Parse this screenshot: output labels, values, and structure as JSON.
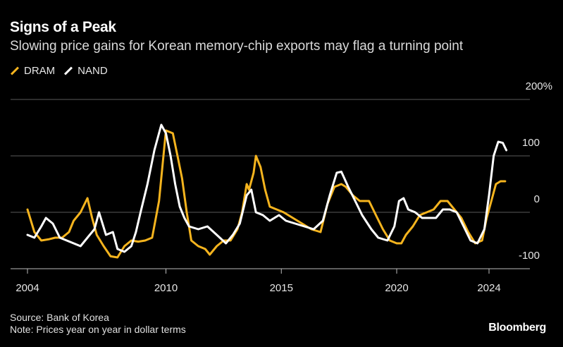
{
  "header": {
    "title": "Signs of a Peak",
    "subtitle": "Slowing price gains for Korean memory-chip exports may flag a turning point"
  },
  "legend": [
    {
      "label": "DRAM",
      "color": "#f5b41e"
    },
    {
      "label": "NAND",
      "color": "#ffffff"
    }
  ],
  "footer": {
    "source": "Source: Bank of Korea",
    "note": "Note: Prices year on year in dollar terms",
    "brand": "Bloomberg"
  },
  "chart_data": {
    "type": "line",
    "title": "Signs of a Peak",
    "subtitle": "Slowing price gains for Korean memory-chip exports may flag a turning point",
    "xlabel": "",
    "ylabel": "",
    "xlim": [
      2003.8,
      2025.2
    ],
    "ylim": [
      -100,
      200
    ],
    "y_unit": "%",
    "y_ticks": [
      {
        "value": 200,
        "label": "200%"
      },
      {
        "value": 100,
        "label": "100"
      },
      {
        "value": 0,
        "label": "0"
      },
      {
        "value": -100,
        "label": "-100"
      }
    ],
    "x_ticks": [
      {
        "value": 2004,
        "label": "2004"
      },
      {
        "value": 2010,
        "label": "2010"
      },
      {
        "value": 2015,
        "label": "2015"
      },
      {
        "value": 2020,
        "label": "2020"
      },
      {
        "value": 2024,
        "label": "2024"
      }
    ],
    "grid": "horizontal",
    "legend_position": "top-left",
    "series": [
      {
        "name": "DRAM",
        "color": "#f5b41e",
        "points": [
          [
            2004.0,
            5
          ],
          [
            2004.3,
            -35
          ],
          [
            2004.6,
            -50
          ],
          [
            2004.9,
            -48
          ],
          [
            2005.2,
            -45
          ],
          [
            2005.5,
            -45
          ],
          [
            2005.8,
            -35
          ],
          [
            2006.0,
            -15
          ],
          [
            2006.3,
            0
          ],
          [
            2006.6,
            25
          ],
          [
            2006.8,
            -10
          ],
          [
            2007.0,
            -40
          ],
          [
            2007.3,
            -60
          ],
          [
            2007.6,
            -78
          ],
          [
            2007.9,
            -80
          ],
          [
            2008.2,
            -60
          ],
          [
            2008.5,
            -50
          ],
          [
            2008.8,
            -52
          ],
          [
            2009.1,
            -50
          ],
          [
            2009.4,
            -45
          ],
          [
            2009.7,
            20
          ],
          [
            2010.0,
            145
          ],
          [
            2010.3,
            140
          ],
          [
            2010.5,
            100
          ],
          [
            2010.7,
            60
          ],
          [
            2010.9,
            0
          ],
          [
            2011.1,
            -50
          ],
          [
            2011.4,
            -60
          ],
          [
            2011.7,
            -65
          ],
          [
            2011.9,
            -75
          ],
          [
            2012.2,
            -60
          ],
          [
            2012.5,
            -50
          ],
          [
            2012.8,
            -50
          ],
          [
            2013.1,
            -30
          ],
          [
            2013.3,
            0
          ],
          [
            2013.5,
            50
          ],
          [
            2013.6,
            40
          ],
          [
            2013.8,
            70
          ],
          [
            2013.9,
            100
          ],
          [
            2014.1,
            80
          ],
          [
            2014.3,
            40
          ],
          [
            2014.5,
            10
          ],
          [
            2014.8,
            5
          ],
          [
            2015.1,
            0
          ],
          [
            2015.5,
            -10
          ],
          [
            2015.9,
            -20
          ],
          [
            2016.3,
            -30
          ],
          [
            2016.7,
            -35
          ],
          [
            2017.0,
            15
          ],
          [
            2017.3,
            45
          ],
          [
            2017.6,
            50
          ],
          [
            2017.8,
            45
          ],
          [
            2018.1,
            30
          ],
          [
            2018.4,
            20
          ],
          [
            2018.8,
            20
          ],
          [
            2019.1,
            -5
          ],
          [
            2019.4,
            -30
          ],
          [
            2019.7,
            -50
          ],
          [
            2020.0,
            -55
          ],
          [
            2020.2,
            -55
          ],
          [
            2020.4,
            -40
          ],
          [
            2020.7,
            -25
          ],
          [
            2021.0,
            -5
          ],
          [
            2021.3,
            0
          ],
          [
            2021.6,
            5
          ],
          [
            2021.9,
            20
          ],
          [
            2022.2,
            20
          ],
          [
            2022.5,
            5
          ],
          [
            2022.8,
            -10
          ],
          [
            2023.1,
            -35
          ],
          [
            2023.4,
            -55
          ],
          [
            2023.7,
            -50
          ],
          [
            2023.9,
            -10
          ],
          [
            2024.1,
            20
          ],
          [
            2024.3,
            50
          ],
          [
            2024.5,
            55
          ],
          [
            2024.7,
            55
          ]
        ]
      },
      {
        "name": "NAND",
        "color": "#ffffff",
        "points": [
          [
            2004.0,
            -40
          ],
          [
            2004.3,
            -45
          ],
          [
            2004.6,
            -25
          ],
          [
            2004.8,
            -10
          ],
          [
            2005.1,
            -20
          ],
          [
            2005.4,
            -45
          ],
          [
            2005.7,
            -50
          ],
          [
            2006.0,
            -55
          ],
          [
            2006.3,
            -60
          ],
          [
            2006.6,
            -45
          ],
          [
            2006.9,
            -30
          ],
          [
            2007.1,
            0
          ],
          [
            2007.4,
            -40
          ],
          [
            2007.7,
            -35
          ],
          [
            2007.9,
            -65
          ],
          [
            2008.2,
            -70
          ],
          [
            2008.5,
            -60
          ],
          [
            2008.7,
            -35
          ],
          [
            2008.9,
            0
          ],
          [
            2009.2,
            50
          ],
          [
            2009.5,
            110
          ],
          [
            2009.8,
            155
          ],
          [
            2010.0,
            140
          ],
          [
            2010.2,
            100
          ],
          [
            2010.4,
            50
          ],
          [
            2010.6,
            10
          ],
          [
            2010.8,
            -10
          ],
          [
            2011.0,
            -25
          ],
          [
            2011.4,
            -30
          ],
          [
            2011.8,
            -25
          ],
          [
            2012.2,
            -40
          ],
          [
            2012.6,
            -55
          ],
          [
            2012.9,
            -40
          ],
          [
            2013.2,
            -20
          ],
          [
            2013.5,
            30
          ],
          [
            2013.7,
            40
          ],
          [
            2013.9,
            0
          ],
          [
            2014.2,
            -5
          ],
          [
            2014.5,
            -15
          ],
          [
            2014.9,
            -5
          ],
          [
            2015.2,
            -15
          ],
          [
            2015.6,
            -20
          ],
          [
            2016.0,
            -25
          ],
          [
            2016.4,
            -30
          ],
          [
            2016.8,
            -15
          ],
          [
            2017.1,
            30
          ],
          [
            2017.4,
            70
          ],
          [
            2017.6,
            72
          ],
          [
            2017.9,
            45
          ],
          [
            2018.2,
            20
          ],
          [
            2018.5,
            -5
          ],
          [
            2018.9,
            -30
          ],
          [
            2019.2,
            -45
          ],
          [
            2019.6,
            -50
          ],
          [
            2019.9,
            -25
          ],
          [
            2020.1,
            20
          ],
          [
            2020.3,
            25
          ],
          [
            2020.5,
            5
          ],
          [
            2020.8,
            0
          ],
          [
            2021.1,
            -10
          ],
          [
            2021.4,
            -10
          ],
          [
            2021.7,
            -10
          ],
          [
            2022.0,
            5
          ],
          [
            2022.3,
            5
          ],
          [
            2022.6,
            0
          ],
          [
            2022.9,
            -25
          ],
          [
            2023.2,
            -50
          ],
          [
            2023.5,
            -55
          ],
          [
            2023.8,
            -30
          ],
          [
            2024.0,
            30
          ],
          [
            2024.2,
            100
          ],
          [
            2024.4,
            125
          ],
          [
            2024.6,
            123
          ],
          [
            2024.75,
            110
          ]
        ]
      }
    ]
  }
}
